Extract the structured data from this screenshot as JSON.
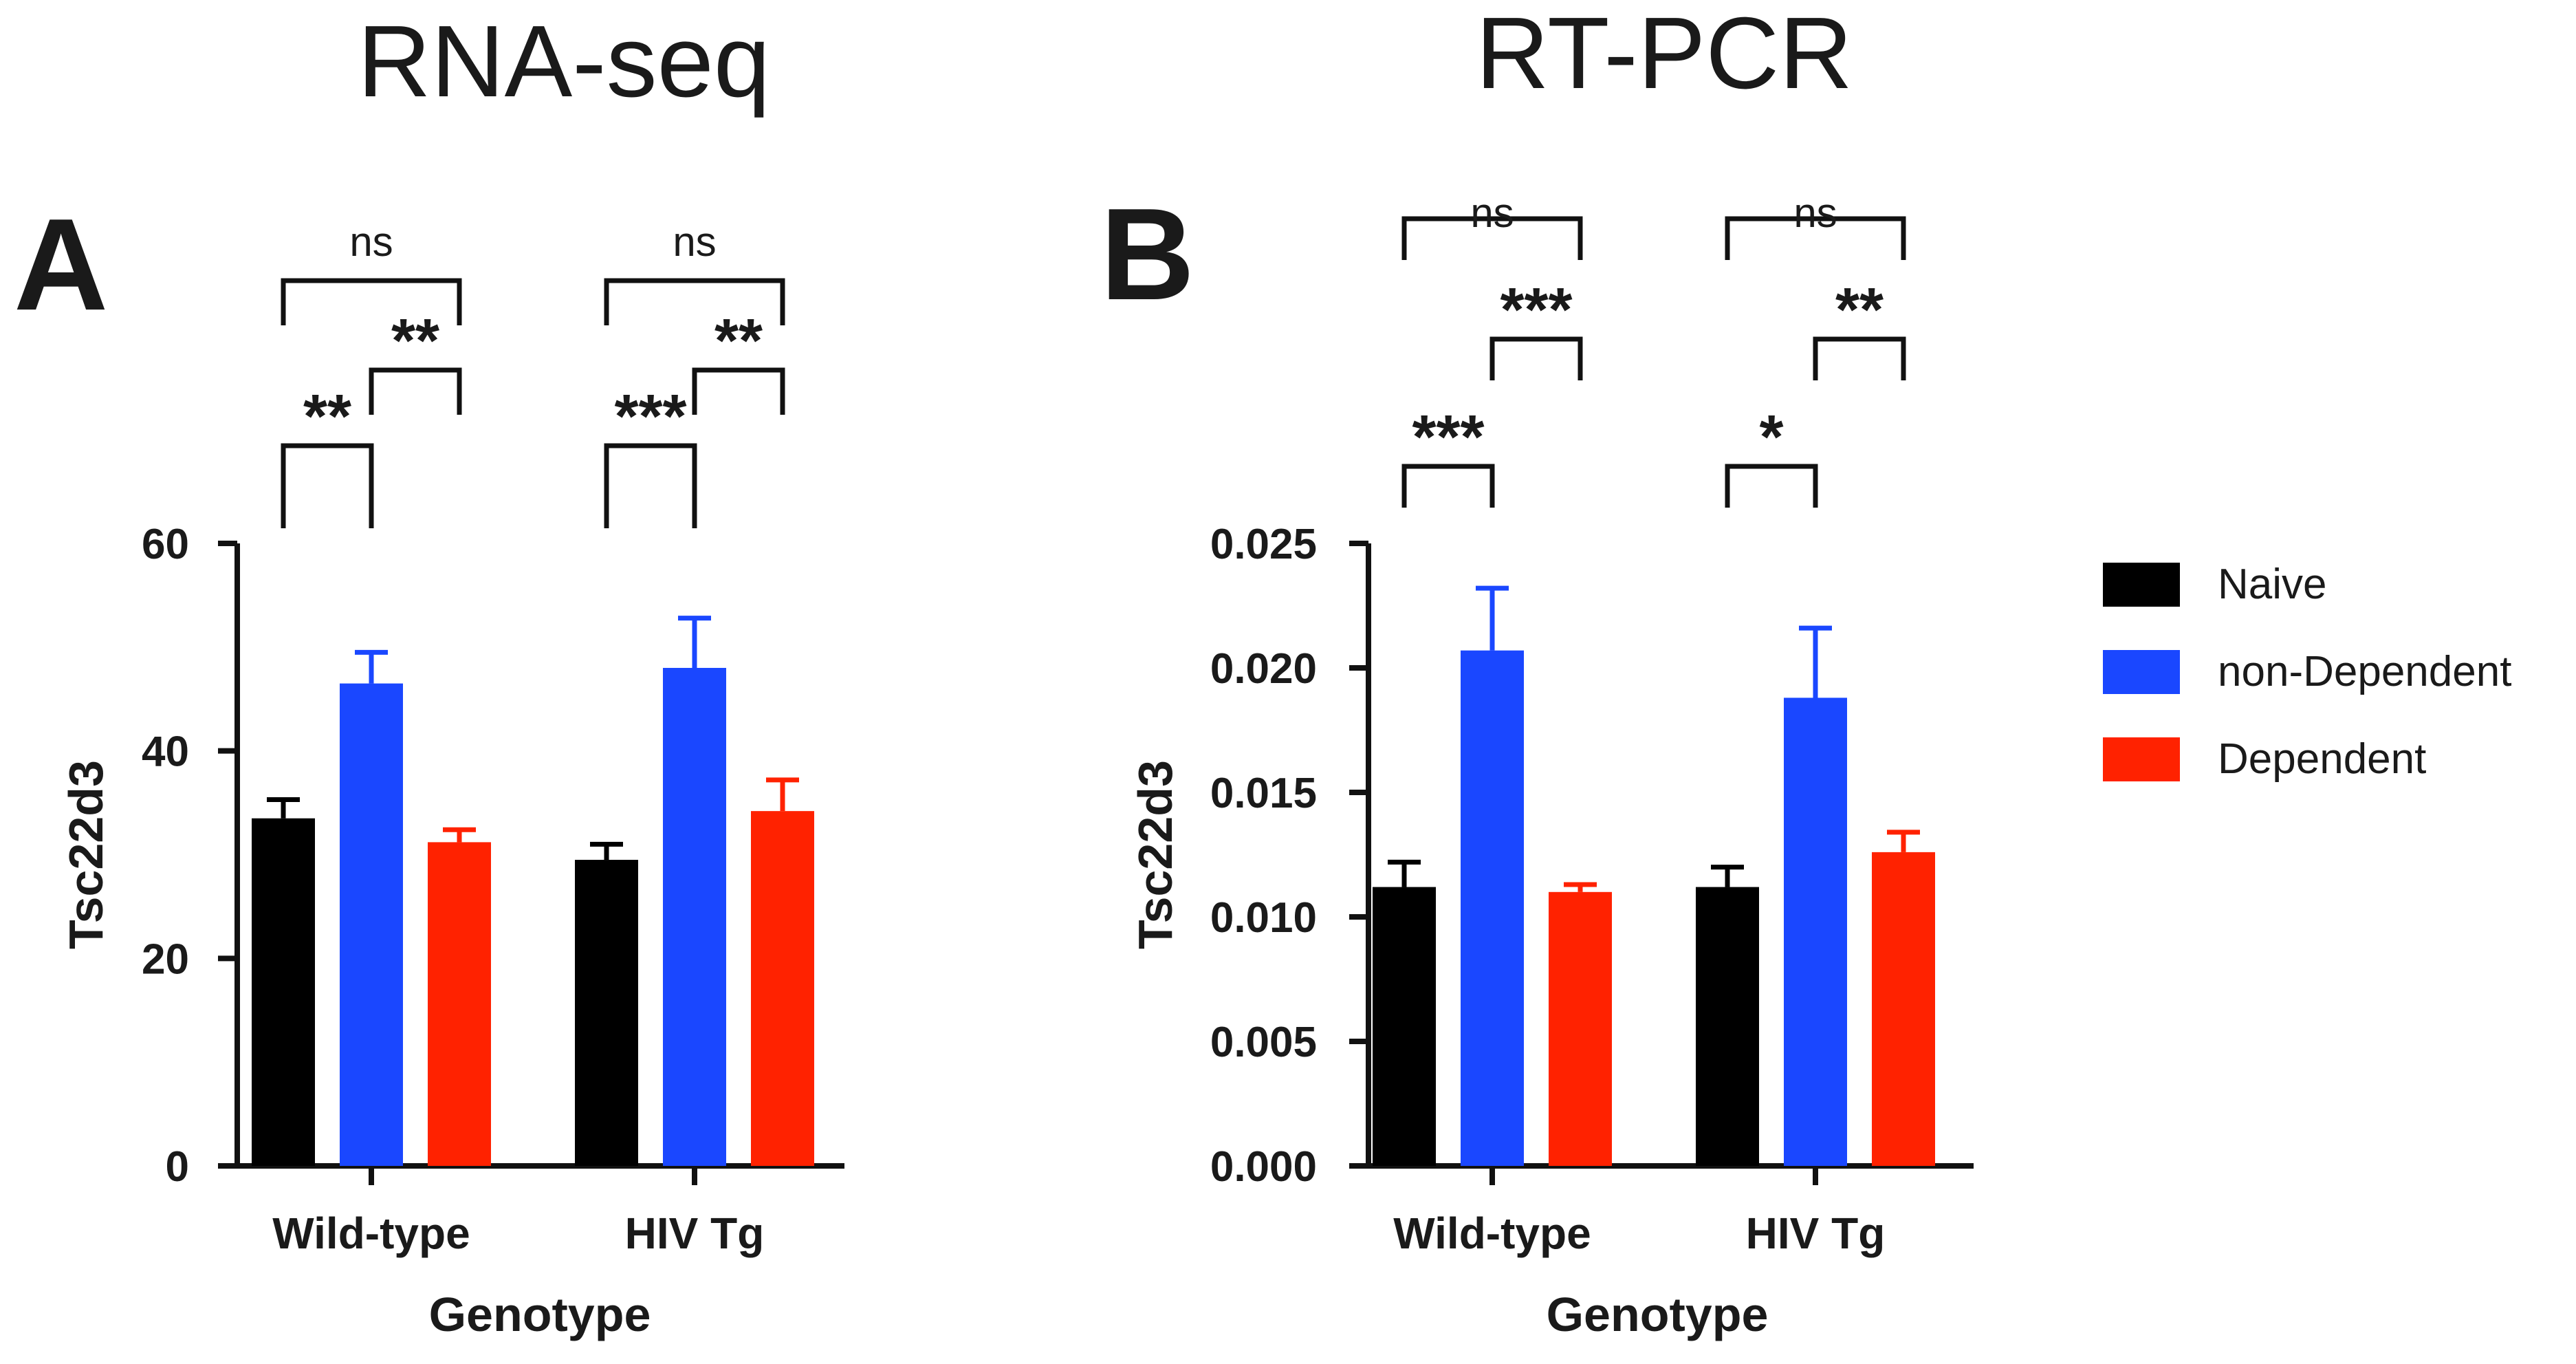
{
  "legend": [
    {
      "label": "Naive",
      "color": "#000000"
    },
    {
      "label": "non-Dependent",
      "color": "#1a47ff"
    },
    {
      "label": "Dependent",
      "color": "#ff2200"
    }
  ],
  "chart_data": [
    {
      "type": "bar",
      "panel": "A",
      "title": "RNA-seq",
      "xlabel": "Genotype",
      "ylabel": "Tsc22d3",
      "ylim": [
        0,
        60
      ],
      "yticks": [
        0,
        20,
        40,
        60
      ],
      "ytick_labels": [
        "0",
        "20",
        "40",
        "60"
      ],
      "categories": [
        "Wild-type",
        "HIV Tg"
      ],
      "series": [
        {
          "name": "Naive",
          "values": [
            33.5,
            29.5
          ],
          "errors": [
            1.8,
            1.5
          ]
        },
        {
          "name": "non-Dependent",
          "values": [
            46.5,
            48.0
          ],
          "errors": [
            3.0,
            4.8
          ]
        },
        {
          "name": "Dependent",
          "values": [
            31.2,
            34.2
          ],
          "errors": [
            1.2,
            3.0
          ]
        }
      ],
      "comparisons": [
        {
          "category": 0,
          "from": 0,
          "to": 1,
          "label": "**"
        },
        {
          "category": 0,
          "from": 1,
          "to": 2,
          "label": "**"
        },
        {
          "category": 0,
          "from": 0,
          "to": 2,
          "label": "ns"
        },
        {
          "category": 1,
          "from": 0,
          "to": 1,
          "label": "***"
        },
        {
          "category": 1,
          "from": 1,
          "to": 2,
          "label": "**"
        },
        {
          "category": 1,
          "from": 0,
          "to": 2,
          "label": "ns"
        }
      ]
    },
    {
      "type": "bar",
      "panel": "B",
      "title": "RT-PCR",
      "xlabel": "Genotype",
      "ylabel": "Tsc22d3",
      "ylim": [
        0,
        0.025
      ],
      "yticks": [
        0,
        0.005,
        0.01,
        0.015,
        0.02,
        0.025
      ],
      "ytick_labels": [
        "0.000",
        "0.005",
        "0.010",
        "0.015",
        "0.020",
        "0.025"
      ],
      "categories": [
        "Wild-type",
        "HIV Tg"
      ],
      "series": [
        {
          "name": "Naive",
          "values": [
            0.0112,
            0.0112
          ],
          "errors": [
            0.001,
            0.0008
          ]
        },
        {
          "name": "non-Dependent",
          "values": [
            0.0207,
            0.0188
          ],
          "errors": [
            0.0025,
            0.0028
          ]
        },
        {
          "name": "Dependent",
          "values": [
            0.011,
            0.0126
          ],
          "errors": [
            0.0003,
            0.0008
          ]
        }
      ],
      "comparisons": [
        {
          "category": 0,
          "from": 0,
          "to": 1,
          "label": "***"
        },
        {
          "category": 0,
          "from": 1,
          "to": 2,
          "label": "***"
        },
        {
          "category": 0,
          "from": 0,
          "to": 2,
          "label": "ns"
        },
        {
          "category": 1,
          "from": 0,
          "to": 1,
          "label": "*"
        },
        {
          "category": 1,
          "from": 1,
          "to": 2,
          "label": "**"
        },
        {
          "category": 1,
          "from": 0,
          "to": 2,
          "label": "ns"
        }
      ]
    }
  ]
}
